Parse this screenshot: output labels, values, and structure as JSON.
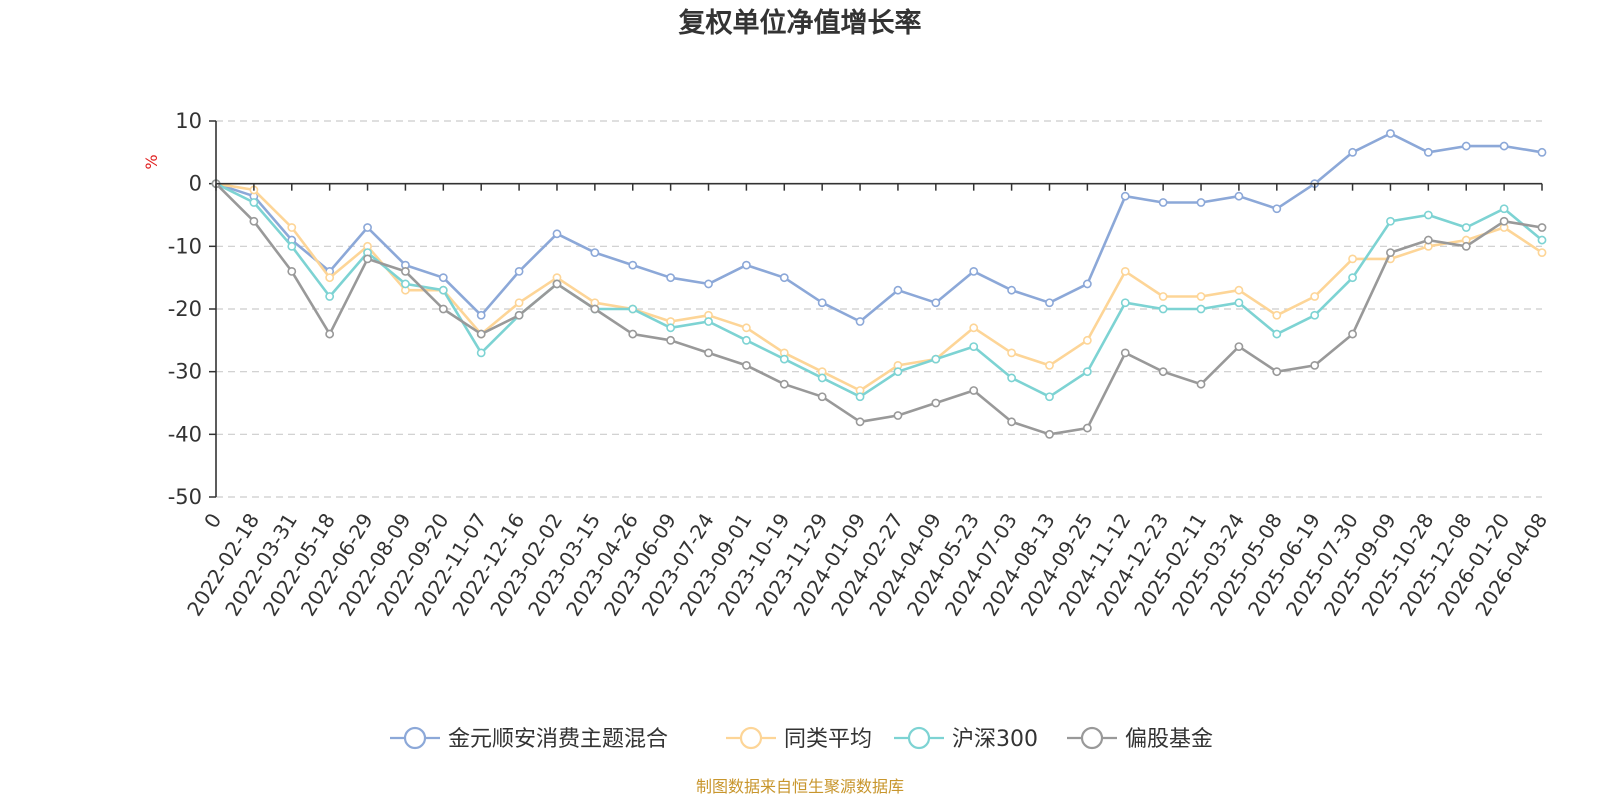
{
  "chart_data": {
    "type": "line",
    "title": "复权单位净值增长率",
    "ylabel": "%",
    "ylim": [
      -50,
      10
    ],
    "yticks": [
      10,
      0,
      -10,
      -20,
      -30,
      -40,
      -50
    ],
    "grid": true,
    "legend_position": "bottom",
    "categories": [
      "0",
      "2022-02-18",
      "2022-03-31",
      "2022-05-18",
      "2022-06-29",
      "2022-08-09",
      "2022-09-20",
      "2022-11-07",
      "2022-12-16",
      "2023-02-02",
      "2023-03-15",
      "2023-04-26",
      "2023-06-09",
      "2023-07-24",
      "2023-09-01",
      "2023-10-19",
      "2023-11-29",
      "2024-01-09",
      "2024-02-27",
      "2024-04-09",
      "2024-05-23",
      "2024-07-03",
      "2024-08-13",
      "2024-09-25",
      "2024-11-12",
      "2024-12-23",
      "2025-02-11",
      "2025-03-24",
      "2025-05-08",
      "2025-06-19",
      "2025-07-30",
      "2025-09-09",
      "2025-10-28",
      "2025-12-08",
      "2026-01-20",
      "2026-04-08"
    ],
    "series": [
      {
        "name": "金元顺安消费主题混合",
        "color": "#8ca8d8",
        "values": [
          0,
          -2,
          -9,
          -14,
          -7,
          -13,
          -15,
          -21,
          -14,
          -8,
          -11,
          -13,
          -15,
          -16,
          -13,
          -15,
          -19,
          -22,
          -17,
          -19,
          -14,
          -17,
          -19,
          -16,
          -2,
          -3,
          -3,
          -2,
          -4,
          0,
          5,
          8,
          5,
          6,
          6,
          5
        ]
      },
      {
        "name": "同类平均",
        "color": "#fdd597",
        "values": [
          0,
          -1,
          -7,
          -15,
          -10,
          -17,
          -17,
          -24,
          -19,
          -15,
          -19,
          -20,
          -22,
          -21,
          -23,
          -27,
          -30,
          -33,
          -29,
          -28,
          -23,
          -27,
          -29,
          -25,
          -14,
          -18,
          -18,
          -17,
          -21,
          -18,
          -12,
          -12,
          -10,
          -9,
          -7,
          -11
        ]
      },
      {
        "name": "沪深300",
        "color": "#7dd3d3",
        "values": [
          0,
          -3,
          -10,
          -18,
          -11,
          -16,
          -17,
          -27,
          -21,
          -16,
          -20,
          -20,
          -23,
          -22,
          -25,
          -28,
          -31,
          -34,
          -30,
          -28,
          -26,
          -31,
          -34,
          -30,
          -19,
          -20,
          -20,
          -19,
          -24,
          -21,
          -15,
          -6,
          -5,
          -7,
          -4,
          -9
        ]
      },
      {
        "name": "偏股基金",
        "color": "#999999",
        "values": [
          0,
          -6,
          -14,
          -24,
          -12,
          -14,
          -20,
          -24,
          -21,
          -16,
          -20,
          -24,
          -25,
          -27,
          -29,
          -32,
          -34,
          -38,
          -37,
          -35,
          -33,
          -38,
          -40,
          -39,
          -27,
          -30,
          -32,
          -26,
          -30,
          -29,
          -24,
          -11,
          -9,
          -10,
          -6,
          -7
        ]
      }
    ]
  },
  "source_note": "制图数据来自恒生聚源数据库"
}
